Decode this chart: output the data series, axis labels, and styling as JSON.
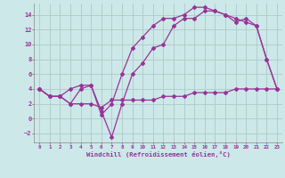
{
  "xlabel": "Windchill (Refroidissement éolien,°C)",
  "background_color": "#cce8e8",
  "grid_color": "#b0c8c8",
  "line_color": "#993399",
  "xlim": [
    -0.5,
    23.5
  ],
  "ylim": [
    -3.2,
    15.5
  ],
  "yticks": [
    -2,
    0,
    2,
    4,
    6,
    8,
    10,
    12,
    14
  ],
  "xticks": [
    0,
    1,
    2,
    3,
    4,
    5,
    6,
    7,
    8,
    9,
    10,
    11,
    12,
    13,
    14,
    15,
    16,
    17,
    18,
    19,
    20,
    21,
    22,
    23
  ],
  "line1_x": [
    0,
    1,
    2,
    3,
    4,
    5,
    6,
    7,
    8,
    9,
    10,
    11,
    12,
    13,
    14,
    15,
    16,
    17,
    18,
    19,
    20,
    21,
    22,
    23
  ],
  "line1_y": [
    4.0,
    3.0,
    3.0,
    4.0,
    4.5,
    4.5,
    0.5,
    2.0,
    6.0,
    9.5,
    11.0,
    12.5,
    13.5,
    13.5,
    14.0,
    15.0,
    15.0,
    14.5,
    14.0,
    13.5,
    13.0,
    12.5,
    8.0,
    4.0
  ],
  "line2_x": [
    0,
    1,
    2,
    3,
    4,
    5,
    6,
    7,
    8,
    9,
    10,
    11,
    12,
    13,
    14,
    15,
    16,
    17,
    18,
    19,
    20,
    21,
    22,
    23
  ],
  "line2_y": [
    4.0,
    3.0,
    3.0,
    2.0,
    2.0,
    2.0,
    1.5,
    2.5,
    2.5,
    2.5,
    2.5,
    2.5,
    3.0,
    3.0,
    3.0,
    3.5,
    3.5,
    3.5,
    3.5,
    4.0,
    4.0,
    4.0,
    4.0,
    4.0
  ],
  "line3_x": [
    0,
    1,
    2,
    3,
    4,
    5,
    6,
    7,
    8,
    9,
    10,
    11,
    12,
    13,
    14,
    15,
    16,
    17,
    18,
    19,
    20,
    21,
    22,
    23
  ],
  "line3_y": [
    4.0,
    3.0,
    3.0,
    2.0,
    4.0,
    4.5,
    1.0,
    -2.5,
    2.0,
    6.0,
    7.5,
    9.5,
    10.0,
    12.5,
    13.5,
    13.5,
    14.5,
    14.5,
    14.0,
    13.0,
    13.5,
    12.5,
    8.0,
    4.0
  ]
}
